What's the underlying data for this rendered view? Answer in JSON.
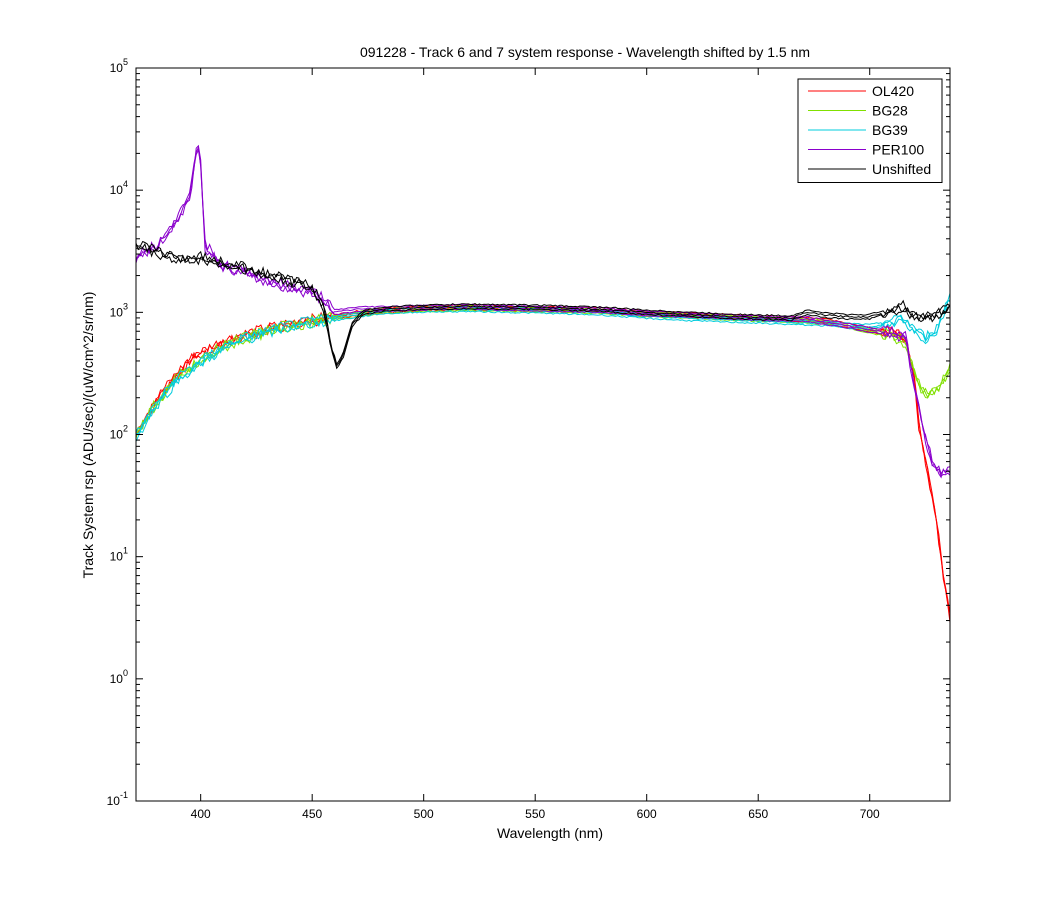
{
  "chart_data": {
    "type": "line",
    "title": "091228 - Track 6 and 7 system response - Wavelength shifted by 1.5 nm",
    "xlabel": "Wavelength (nm)",
    "ylabel": "Track System rsp (ADU/sec)/(uW/cm^2/sr/nm)",
    "xlim": [
      371,
      736
    ],
    "ylim": [
      0.1,
      100000
    ],
    "yscale": "log",
    "grid": false,
    "legend_position": "top-right",
    "x_ticks": [
      400,
      450,
      500,
      550,
      600,
      650,
      700
    ],
    "y_ticks": [
      {
        "value": 0.1,
        "base": "10",
        "exp": "-1"
      },
      {
        "value": 1,
        "base": "10",
        "exp": "0"
      },
      {
        "value": 10,
        "base": "10",
        "exp": "1"
      },
      {
        "value": 100,
        "base": "10",
        "exp": "2"
      },
      {
        "value": 1000,
        "base": "10",
        "exp": "3"
      },
      {
        "value": 10000,
        "base": "10",
        "exp": "4"
      },
      {
        "value": 100000,
        "base": "10",
        "exp": "5"
      }
    ],
    "series": [
      {
        "name": "OL420",
        "color": "#ff0000",
        "points": [
          [
            371,
            105
          ],
          [
            380,
            190
          ],
          [
            390,
            320
          ],
          [
            398,
            450
          ],
          [
            400,
            460
          ],
          [
            410,
            570
          ],
          [
            420,
            650
          ],
          [
            430,
            730
          ],
          [
            440,
            800
          ],
          [
            450,
            860
          ],
          [
            460,
            920
          ],
          [
            470,
            980
          ],
          [
            480,
            1030
          ],
          [
            490,
            1050
          ],
          [
            500,
            1070
          ],
          [
            520,
            1100
          ],
          [
            550,
            1070
          ],
          [
            580,
            1040
          ],
          [
            600,
            980
          ],
          [
            620,
            950
          ],
          [
            650,
            900
          ],
          [
            665,
            880
          ],
          [
            672,
            870
          ],
          [
            680,
            850
          ],
          [
            690,
            780
          ],
          [
            700,
            720
          ],
          [
            710,
            680
          ],
          [
            716,
            600
          ],
          [
            720,
            300
          ],
          [
            722,
            120
          ],
          [
            726,
            50
          ],
          [
            730,
            20
          ],
          [
            733,
            7
          ],
          [
            736,
            3.2
          ]
        ]
      },
      {
        "name": "BG28",
        "color": "#80e000",
        "points": [
          [
            371,
            100
          ],
          [
            380,
            180
          ],
          [
            390,
            300
          ],
          [
            400,
            400
          ],
          [
            410,
            520
          ],
          [
            420,
            620
          ],
          [
            430,
            700
          ],
          [
            440,
            780
          ],
          [
            450,
            840
          ],
          [
            460,
            900
          ],
          [
            470,
            960
          ],
          [
            480,
            1020
          ],
          [
            490,
            1040
          ],
          [
            500,
            1060
          ],
          [
            520,
            1080
          ],
          [
            550,
            1050
          ],
          [
            580,
            1020
          ],
          [
            600,
            960
          ],
          [
            620,
            930
          ],
          [
            650,
            880
          ],
          [
            665,
            860
          ],
          [
            672,
            850
          ],
          [
            680,
            830
          ],
          [
            690,
            780
          ],
          [
            700,
            700
          ],
          [
            710,
            650
          ],
          [
            716,
            560
          ],
          [
            720,
            330
          ],
          [
            723,
            230
          ],
          [
            727,
            210
          ],
          [
            731,
            240
          ],
          [
            736,
            360
          ]
        ]
      },
      {
        "name": "BG39",
        "color": "#00ccdd",
        "points": [
          [
            371,
            95
          ],
          [
            380,
            175
          ],
          [
            390,
            290
          ],
          [
            400,
            390
          ],
          [
            410,
            510
          ],
          [
            420,
            610
          ],
          [
            430,
            690
          ],
          [
            440,
            770
          ],
          [
            450,
            830
          ],
          [
            460,
            890
          ],
          [
            470,
            950
          ],
          [
            480,
            1010
          ],
          [
            490,
            1030
          ],
          [
            500,
            1050
          ],
          [
            520,
            1060
          ],
          [
            550,
            1030
          ],
          [
            580,
            990
          ],
          [
            600,
            930
          ],
          [
            620,
            890
          ],
          [
            650,
            850
          ],
          [
            665,
            830
          ],
          [
            672,
            820
          ],
          [
            680,
            810
          ],
          [
            690,
            780
          ],
          [
            700,
            760
          ],
          [
            710,
            820
          ],
          [
            714,
            900
          ],
          [
            720,
            720
          ],
          [
            725,
            610
          ],
          [
            730,
            720
          ],
          [
            736,
            1350
          ]
        ]
      },
      {
        "name": "PER100",
        "color": "#8a00cc",
        "points": [
          [
            371,
            2800
          ],
          [
            375,
            3200
          ],
          [
            380,
            3400
          ],
          [
            385,
            4500
          ],
          [
            390,
            6000
          ],
          [
            395,
            9000
          ],
          [
            398,
            20000
          ],
          [
            399,
            24000
          ],
          [
            400,
            16000
          ],
          [
            402,
            3500
          ],
          [
            410,
            2400
          ],
          [
            420,
            2100
          ],
          [
            430,
            1800
          ],
          [
            440,
            1600
          ],
          [
            450,
            1450
          ],
          [
            455,
            1300
          ],
          [
            460,
            1000
          ],
          [
            465,
            1030
          ],
          [
            470,
            1060
          ],
          [
            480,
            1070
          ],
          [
            490,
            1080
          ],
          [
            500,
            1090
          ],
          [
            520,
            1110
          ],
          [
            550,
            1070
          ],
          [
            580,
            1040
          ],
          [
            600,
            980
          ],
          [
            620,
            950
          ],
          [
            650,
            900
          ],
          [
            665,
            880
          ],
          [
            672,
            880
          ],
          [
            680,
            830
          ],
          [
            690,
            780
          ],
          [
            700,
            720
          ],
          [
            710,
            680
          ],
          [
            716,
            620
          ],
          [
            720,
            250
          ],
          [
            724,
            110
          ],
          [
            728,
            60
          ],
          [
            732,
            48
          ],
          [
            736,
            52
          ]
        ]
      },
      {
        "name": "Unshifted",
        "color": "#000000",
        "points": [
          [
            371,
            3600
          ],
          [
            380,
            3100
          ],
          [
            390,
            2700
          ],
          [
            400,
            2800
          ],
          [
            410,
            2500
          ],
          [
            420,
            2300
          ],
          [
            430,
            2000
          ],
          [
            440,
            1800
          ],
          [
            450,
            1600
          ],
          [
            455,
            1100
          ],
          [
            458,
            600
          ],
          [
            461,
            360
          ],
          [
            464,
            450
          ],
          [
            468,
            800
          ],
          [
            473,
            1000
          ],
          [
            480,
            1050
          ],
          [
            490,
            1080
          ],
          [
            500,
            1100
          ],
          [
            520,
            1120
          ],
          [
            550,
            1100
          ],
          [
            580,
            1060
          ],
          [
            600,
            1000
          ],
          [
            620,
            960
          ],
          [
            650,
            910
          ],
          [
            665,
            900
          ],
          [
            672,
            1000
          ],
          [
            680,
            950
          ],
          [
            690,
            920
          ],
          [
            700,
            920
          ],
          [
            710,
            1050
          ],
          [
            715,
            1100
          ],
          [
            720,
            950
          ],
          [
            725,
            900
          ],
          [
            730,
            980
          ],
          [
            736,
            1100
          ]
        ]
      }
    ]
  }
}
